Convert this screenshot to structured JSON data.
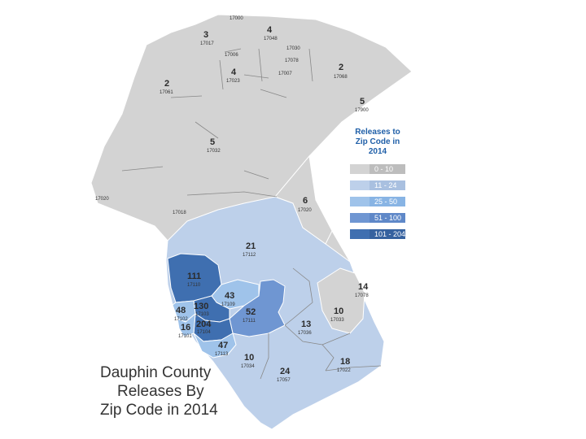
{
  "title_lines": [
    "Dauphin County",
    "Releases By",
    "Zip Code in 2014"
  ],
  "legend": {
    "title_lines": [
      "Releases to",
      "Zip Code in",
      "2014"
    ],
    "items": [
      {
        "label": "0 - 10",
        "color": "#d3d3d3"
      },
      {
        "label": "11 - 24",
        "color": "#bdd0ea"
      },
      {
        "label": "25 - 50",
        "color": "#9fc3ea"
      },
      {
        "label": "51 - 100",
        "color": "#6f96d2"
      },
      {
        "label": "101 - 204",
        "color": "#3f6fb0"
      }
    ]
  },
  "regions": [
    {
      "zip": "17000",
      "releases": ""
    },
    {
      "zip": "17017",
      "releases": "3"
    },
    {
      "zip": "17048",
      "releases": "4"
    },
    {
      "zip": "17006",
      "releases": ""
    },
    {
      "zip": "17030",
      "releases": ""
    },
    {
      "zip": "17078",
      "releases": ""
    },
    {
      "zip": "17007",
      "releases": ""
    },
    {
      "zip": "17068",
      "releases": "2"
    },
    {
      "zip": "17023",
      "releases": "4"
    },
    {
      "zip": "17061",
      "releases": "2"
    },
    {
      "zip": "17900",
      "releases": "5"
    },
    {
      "zip": "17032",
      "releases": "5"
    },
    {
      "zip": "17020",
      "releases": ""
    },
    {
      "zip": "17018",
      "releases": ""
    },
    {
      "zip": "17020",
      "releases": "6"
    },
    {
      "zip": "17112",
      "releases": "21"
    },
    {
      "zip": "17110",
      "releases": "111"
    },
    {
      "zip": "17109",
      "releases": "43"
    },
    {
      "zip": "17103",
      "releases": "130"
    },
    {
      "zip": "17102",
      "releases": "48"
    },
    {
      "zip": "17111",
      "releases": "52"
    },
    {
      "zip": "17104",
      "releases": "204"
    },
    {
      "zip": "17101",
      "releases": "16"
    },
    {
      "zip": "17113",
      "releases": "47"
    },
    {
      "zip": "17078",
      "releases": "14"
    },
    {
      "zip": "17033",
      "releases": "10"
    },
    {
      "zip": "17036",
      "releases": "13"
    },
    {
      "zip": "17034",
      "releases": "10"
    },
    {
      "zip": "17057",
      "releases": "24"
    },
    {
      "zip": "17022",
      "releases": "18"
    }
  ]
}
